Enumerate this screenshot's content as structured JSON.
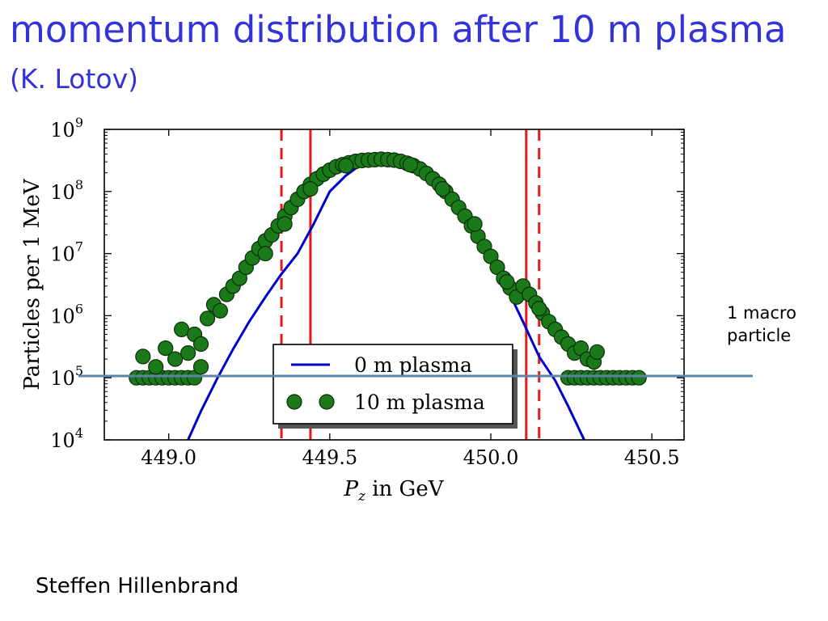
{
  "slide": {
    "title": "momentum distribution after 10 m plasma",
    "subtitle": "(K. Lotov)",
    "author": "Steffen Hillenbrand",
    "note": "1 macro\nparticle",
    "note_line_color": "#5b84a8"
  },
  "chart_data": {
    "type": "scatter",
    "xlabel_var": "P",
    "xlabel_sub": "z",
    "xlabel_rest": " in GeV",
    "ylabel": "Particles per 1 MeV",
    "xlim": [
      448.8,
      450.6
    ],
    "ylim": [
      10000,
      1000000000
    ],
    "yscale": "log",
    "x_ticks": [
      {
        "value": 449.0,
        "label": "449.0"
      },
      {
        "value": 449.5,
        "label": "449.5"
      },
      {
        "value": 450.0,
        "label": "450.0"
      },
      {
        "value": 450.5,
        "label": "450.5"
      }
    ],
    "y_ticks": [
      {
        "exp": 4,
        "base": "10",
        "sup": "4"
      },
      {
        "exp": 5,
        "base": "10",
        "sup": "5"
      },
      {
        "exp": 6,
        "base": "10",
        "sup": "6"
      },
      {
        "exp": 7,
        "base": "10",
        "sup": "7"
      },
      {
        "exp": 8,
        "base": "10",
        "sup": "8"
      },
      {
        "exp": 9,
        "base": "10",
        "sup": "9"
      }
    ],
    "legend": {
      "placement": "lower center",
      "entries": [
        {
          "label": "0 m plasma",
          "marker": "line",
          "color": "#0000cc"
        },
        {
          "label": "10 m plasma",
          "marker": "circle",
          "color": "#1a7a1a"
        }
      ]
    },
    "vertical_lines": [
      {
        "x": 449.35,
        "style": "dashed",
        "color": "#e41a1a"
      },
      {
        "x": 449.44,
        "style": "solid",
        "color": "#e41a1a"
      },
      {
        "x": 450.11,
        "style": "solid",
        "color": "#e41a1a"
      },
      {
        "x": 450.15,
        "style": "dashed",
        "color": "#e41a1a"
      }
    ],
    "series": [
      {
        "name": "0 m plasma",
        "type": "line",
        "color": "#0000cc",
        "points": [
          [
            449.06,
            10000
          ],
          [
            449.1,
            29000
          ],
          [
            449.15,
            96000
          ],
          [
            449.2,
            290000
          ],
          [
            449.25,
            800000
          ],
          [
            449.3,
            2000000
          ],
          [
            449.35,
            4700000
          ],
          [
            449.4,
            10000000
          ],
          [
            449.45,
            30000000
          ],
          [
            449.5,
            100000000
          ],
          [
            449.55,
            180000000
          ],
          [
            449.6,
            280000000
          ],
          [
            449.66,
            330000000
          ],
          [
            449.72,
            300000000
          ],
          [
            449.8,
            200000000
          ],
          [
            449.9,
            60000000
          ],
          [
            450.0,
            10000000
          ],
          [
            450.05,
            2800000
          ],
          [
            450.1,
            800000
          ],
          [
            450.15,
            220000
          ],
          [
            450.2,
            90000
          ],
          [
            450.24,
            35000
          ],
          [
            450.29,
            10000
          ]
        ]
      },
      {
        "name": "10 m plasma",
        "type": "scatter",
        "color": "#1a7a1a",
        "stroke": "#0a2e0a",
        "points": [
          [
            448.9,
            100000
          ],
          [
            448.92,
            100000
          ],
          [
            448.94,
            100000
          ],
          [
            448.96,
            100000
          ],
          [
            448.98,
            100000
          ],
          [
            449.0,
            100000
          ],
          [
            449.02,
            100000
          ],
          [
            449.04,
            100000
          ],
          [
            449.06,
            100000
          ],
          [
            449.08,
            100000
          ],
          [
            448.92,
            220000
          ],
          [
            448.96,
            150000
          ],
          [
            448.99,
            300000
          ],
          [
            449.02,
            200000
          ],
          [
            449.04,
            600000
          ],
          [
            449.06,
            250000
          ],
          [
            449.08,
            500000
          ],
          [
            449.1,
            350000
          ],
          [
            449.1,
            150000
          ],
          [
            449.12,
            900000
          ],
          [
            449.14,
            1500000
          ],
          [
            449.16,
            1200000
          ],
          [
            449.18,
            2200000
          ],
          [
            449.2,
            3000000
          ],
          [
            449.22,
            4000000
          ],
          [
            449.24,
            6000000
          ],
          [
            449.26,
            8500000
          ],
          [
            449.28,
            12000000
          ],
          [
            449.3,
            16000000
          ],
          [
            449.32,
            20000000
          ],
          [
            449.34,
            28000000
          ],
          [
            449.36,
            40000000
          ],
          [
            449.38,
            55000000
          ],
          [
            449.4,
            75000000
          ],
          [
            449.42,
            100000000
          ],
          [
            449.44,
            130000000
          ],
          [
            449.46,
            160000000
          ],
          [
            449.48,
            190000000
          ],
          [
            449.5,
            220000000
          ],
          [
            449.52,
            250000000
          ],
          [
            449.54,
            270000000
          ],
          [
            449.56,
            290000000
          ],
          [
            449.58,
            305000000
          ],
          [
            449.6,
            315000000
          ],
          [
            449.62,
            320000000
          ],
          [
            449.64,
            325000000
          ],
          [
            449.66,
            330000000
          ],
          [
            449.68,
            325000000
          ],
          [
            449.7,
            320000000
          ],
          [
            449.72,
            305000000
          ],
          [
            449.74,
            285000000
          ],
          [
            449.76,
            260000000
          ],
          [
            449.78,
            230000000
          ],
          [
            449.8,
            195000000
          ],
          [
            449.82,
            160000000
          ],
          [
            449.84,
            130000000
          ],
          [
            449.86,
            100000000
          ],
          [
            449.88,
            75000000
          ],
          [
            449.9,
            55000000
          ],
          [
            449.92,
            40000000
          ],
          [
            449.94,
            28000000
          ],
          [
            449.96,
            19000000
          ],
          [
            449.98,
            13000000
          ],
          [
            450.0,
            9000000
          ],
          [
            450.02,
            6000000
          ],
          [
            450.04,
            4000000
          ],
          [
            450.06,
            2800000
          ],
          [
            450.08,
            2000000
          ],
          [
            450.1,
            3000000
          ],
          [
            450.12,
            2200000
          ],
          [
            450.14,
            1600000
          ],
          [
            450.16,
            1100000
          ],
          [
            450.18,
            800000
          ],
          [
            450.2,
            600000
          ],
          [
            450.22,
            450000
          ],
          [
            450.24,
            350000
          ],
          [
            450.26,
            250000
          ],
          [
            450.28,
            300000
          ],
          [
            450.3,
            200000
          ],
          [
            450.32,
            180000
          ],
          [
            450.33,
            260000
          ],
          [
            450.24,
            100000
          ],
          [
            450.26,
            100000
          ],
          [
            450.28,
            100000
          ],
          [
            450.3,
            100000
          ],
          [
            450.32,
            100000
          ],
          [
            450.34,
            100000
          ],
          [
            450.36,
            100000
          ],
          [
            450.38,
            100000
          ],
          [
            450.4,
            100000
          ],
          [
            450.42,
            100000
          ],
          [
            450.44,
            100000
          ],
          [
            450.46,
            100000
          ],
          [
            449.3,
            10000000
          ],
          [
            449.36,
            30000000
          ],
          [
            449.44,
            110000000
          ],
          [
            449.55,
            260000000
          ],
          [
            449.75,
            270000000
          ],
          [
            449.85,
            110000000
          ],
          [
            449.95,
            30000000
          ],
          [
            450.05,
            3500000
          ],
          [
            450.15,
            1300000
          ]
        ]
      }
    ]
  }
}
